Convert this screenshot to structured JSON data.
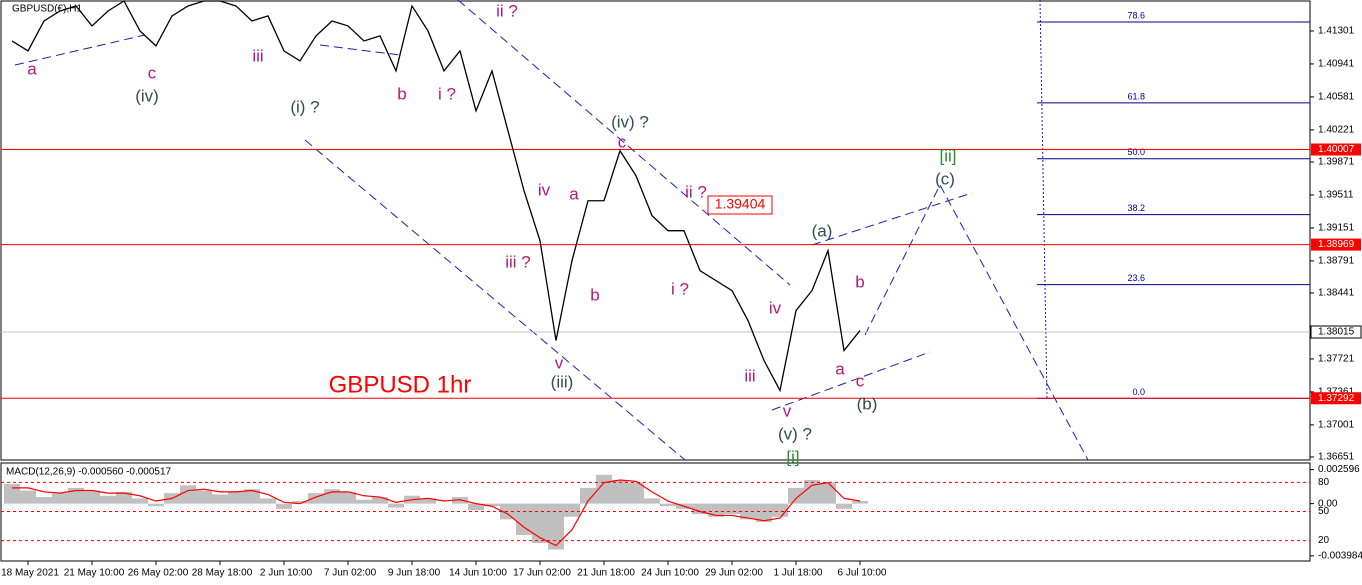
{
  "chart_data": [
    {
      "type": "line",
      "title": "GBPUSD(€),H1",
      "color": "#000000",
      "categories": [
        null,
        "18 May 2021",
        null,
        null,
        null,
        "21 May 10:00",
        null,
        null,
        null,
        "26 May 02:00",
        null,
        null,
        null,
        "28 May 18:00",
        null,
        null,
        null,
        "2 Jun 10:00",
        null,
        null,
        null,
        "7 Jun 02:00",
        null,
        null,
        null,
        "9 Jun 18:00",
        null,
        null,
        null,
        "14 Jun 10:00",
        null,
        null,
        null,
        "17 Jun 02:00",
        null,
        null,
        null,
        "21 Jun 18:00",
        null,
        null,
        null,
        "24 Jun 10:00",
        null,
        null,
        null,
        "29 Jun 02:00",
        null,
        null,
        null,
        "1 Jul 18:00",
        null,
        null,
        null,
        "6 Jul 10:00"
      ],
      "values": [
        1.41192,
        1.41083,
        1.4141,
        1.41519,
        1.41574,
        1.41356,
        1.41519,
        1.41628,
        1.41301,
        1.41138,
        1.41465,
        1.41574,
        1.41628,
        1.41628,
        1.41574,
        1.4141,
        1.41465,
        1.41083,
        1.40974,
        1.41247,
        1.4141,
        1.41356,
        1.41192,
        1.41247,
        1.40865,
        1.41574,
        1.41301,
        1.40865,
        1.41083,
        1.40429,
        1.40865,
        1.40211,
        1.39557,
        1.39012,
        1.37922,
        1.38794,
        1.39448,
        1.39448,
        1.39993,
        1.39721,
        1.39285,
        1.39121,
        1.39121,
        1.38685,
        1.38576,
        1.38467,
        1.3814,
        1.37704,
        1.37377,
        1.38249,
        1.38467,
        1.38903,
        1.37813,
        1.38031
      ],
      "ylim": [
        1.36618,
        1.41628
      ],
      "yticks": [
        1.41301,
        1.40941,
        1.40581,
        1.40221,
        1.39871,
        1.39511,
        1.39151,
        1.38791,
        1.38441,
        1.37721,
        1.37361,
        1.37001,
        1.36651
      ],
      "levels": [
        1.40007,
        1.38969,
        1.37292
      ],
      "level_color": "#ff0000",
      "last_price": 1.38015,
      "fib": [
        {
          "value": 1.41399,
          "label": "78.6"
        },
        {
          "value": 1.40516,
          "label": "61.8"
        },
        {
          "value": 1.39906,
          "label": "50.0"
        },
        {
          "value": 1.39296,
          "label": "38.2"
        },
        {
          "value": 1.38532,
          "label": "23.6"
        },
        {
          "value": 1.3729,
          "label": "0.0"
        }
      ],
      "fib_color": "#00008b",
      "annotations": [
        {
          "text": "a",
          "color": "#b5187f"
        },
        {
          "text": "c",
          "color": "#b5187f"
        },
        {
          "text": "(iv)",
          "color": "#2f4f4f"
        },
        {
          "text": "iii",
          "color": "#b5187f"
        },
        {
          "text": "(i) ?",
          "color": "#2f4f4f"
        },
        {
          "text": "b",
          "color": "#b5187f"
        },
        {
          "text": "i ?",
          "color": "#b5187f"
        },
        {
          "text": "ii ?",
          "color": "#b5187f"
        },
        {
          "text": "(iv) ?",
          "color": "#2f4f4f"
        },
        {
          "text": "c",
          "color": "#b5187f"
        },
        {
          "text": "iv",
          "color": "#b5187f"
        },
        {
          "text": "a",
          "color": "#b5187f"
        },
        {
          "text": "ii ?",
          "color": "#b5187f"
        },
        {
          "text": "iii ?",
          "color": "#b5187f"
        },
        {
          "text": "b",
          "color": "#b5187f"
        },
        {
          "text": "i ?",
          "color": "#b5187f"
        },
        {
          "text": "v",
          "color": "#b5187f"
        },
        {
          "text": "(iii)",
          "color": "#2f4f4f"
        },
        {
          "text": "iv",
          "color": "#b5187f"
        },
        {
          "text": "iii",
          "color": "#b5187f"
        },
        {
          "text": "v",
          "color": "#b5187f"
        },
        {
          "text": "(v) ?",
          "color": "#2f4f4f"
        },
        {
          "text": "[i]",
          "color": "#2e8b2e"
        },
        {
          "text": "(a)",
          "color": "#2f4f4f"
        },
        {
          "text": "b",
          "color": "#b5187f"
        },
        {
          "text": "a",
          "color": "#b5187f"
        },
        {
          "text": "c",
          "color": "#b5187f"
        },
        {
          "text": "(b)",
          "color": "#2f4f4f"
        },
        {
          "text": "[ii]",
          "color": "#2e8b2e"
        },
        {
          "text": "(c)",
          "color": "#2f4f4f"
        },
        {
          "text": "GBPUSD 1hr",
          "color": "#ff0000"
        },
        {
          "text": "1.39404",
          "color": "#ff0000",
          "boxed": true
        }
      ]
    },
    {
      "type": "macd",
      "title": "MACD(12,26,9) -0.000560 -0.000517",
      "color": "#c0c0c0",
      "values": [
        0.0015,
        0.001,
        0.0005,
        0.0008,
        0.0012,
        0.001,
        0.0006,
        0.0009,
        0.0004,
        -0.0002,
        0.0008,
        0.0014,
        0.001,
        0.0007,
        0.0009,
        0.0011,
        0.0004,
        -0.0004,
        0.0002,
        0.0008,
        0.0011,
        0.0009,
        0.0003,
        0.0005,
        -0.0003,
        0.0006,
        0.0004,
        0.0,
        0.0005,
        -0.0005,
        -0.0002,
        -0.0012,
        -0.0024,
        -0.003,
        -0.0035,
        -0.001,
        0.0012,
        0.0022,
        0.0018,
        0.0016,
        0.0004,
        -0.0002,
        -0.0004,
        -0.0008,
        -0.001,
        -0.0008,
        -0.0012,
        -0.0014,
        -0.001,
        0.0012,
        0.0018,
        0.0016,
        -0.0004,
        0.0002
      ],
      "signal": [
        0.0012,
        0.0012,
        0.0009,
        0.0008,
        0.001,
        0.001,
        0.0008,
        0.0008,
        0.0006,
        0.0002,
        0.0004,
        0.001,
        0.0011,
        0.0009,
        0.0009,
        0.001,
        0.0007,
        0.0001,
        0.0,
        0.0005,
        0.0009,
        0.0009,
        0.0006,
        0.0005,
        0.0001,
        0.0003,
        0.0004,
        0.0002,
        0.0003,
        0.0,
        -0.0002,
        -0.0008,
        -0.0018,
        -0.0026,
        -0.0032,
        -0.002,
        0.0002,
        0.0016,
        0.0018,
        0.0017,
        0.0009,
        0.0002,
        -0.0002,
        -0.0006,
        -0.0009,
        -0.0009,
        -0.0011,
        -0.0013,
        -0.0011,
        0.0004,
        0.0014,
        0.0016,
        0.0004,
        0.0002
      ],
      "signal_color": "#ff0000",
      "ylim": [
        -0.0043,
        0.0031
      ],
      "yticks": [
        0.002596,
        {
          "value": 0,
          "label": "0.00"
        },
        -0.003984
      ],
      "levels": [
        80,
        50,
        20
      ],
      "levels_lim": [
        0,
        100
      ],
      "level_color": "#ff0000"
    }
  ]
}
